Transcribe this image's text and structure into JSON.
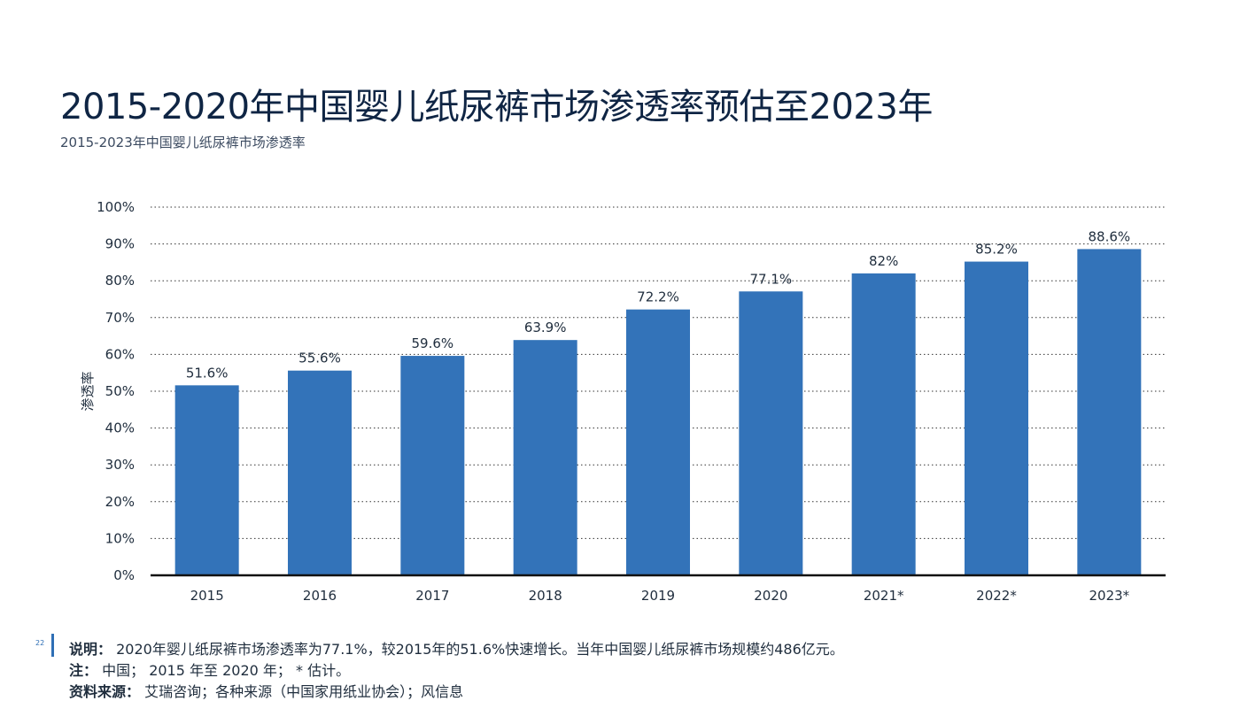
{
  "title": "2015-2020年中国婴儿纸尿裤市场渗透率预估至2023年",
  "subtitle": "2015-2023年中国婴儿纸尿裤市场渗透率",
  "page_number": "22",
  "footer": {
    "note_label": "说明：",
    "note_text": "2020年婴儿纸尿裤市场渗透率为77.1%，较2015年的51.6%快速增长。当年中国婴儿纸尿裤市场规模约486亿元。",
    "remark_label": "注：",
    "remark_text": "中国； 2015 年至 2020 年； * 估计。",
    "source_label": "资料来源：",
    "source_text": "艾瑞咨询；各种来源（中国家用纸业协会）；风信息"
  },
  "colors": {
    "bar": "#3373b9",
    "axis": "#111111",
    "grid": "#333333"
  },
  "chart_data": {
    "type": "bar",
    "categories": [
      "2015",
      "2016",
      "2017",
      "2018",
      "2019",
      "2020",
      "2021*",
      "2022*",
      "2023*"
    ],
    "values": [
      51.6,
      55.6,
      59.6,
      63.9,
      72.2,
      77.1,
      82,
      85.2,
      88.6
    ],
    "data_labels": [
      "51.6%",
      "55.6%",
      "59.6%",
      "63.9%",
      "72.2%",
      "77.1%",
      "82%",
      "85.2%",
      "88.6%"
    ],
    "ylabel": "渗透率",
    "ylim": [
      0,
      100
    ],
    "yticks": [
      0,
      10,
      20,
      30,
      40,
      50,
      60,
      70,
      80,
      90,
      100
    ],
    "ytick_labels": [
      "0%",
      "10%",
      "20%",
      "30%",
      "40%",
      "50%",
      "60%",
      "70%",
      "80%",
      "90%",
      "100%"
    ],
    "grid": true,
    "legend": false
  }
}
